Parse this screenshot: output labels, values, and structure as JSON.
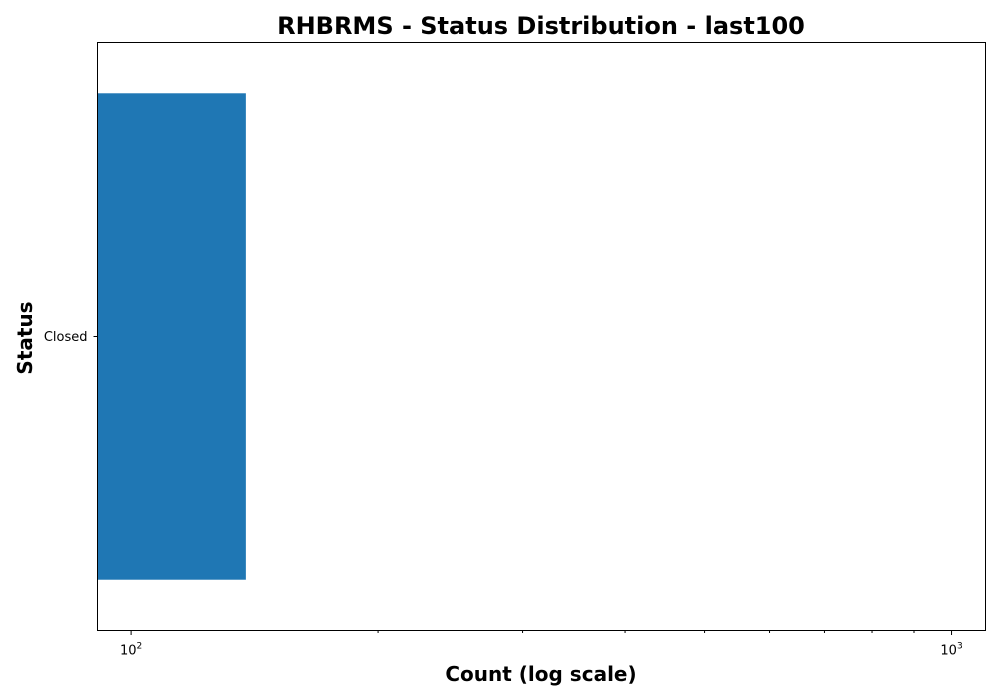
{
  "chart_data": {
    "type": "bar",
    "orientation": "horizontal",
    "title": "RHBRMS - Status Distribution - last100",
    "xlabel": "Count (log scale)",
    "ylabel": "Status",
    "xscale": "log",
    "xlim": [
      91,
      1100
    ],
    "categories": [
      "Closed"
    ],
    "values": [
      138
    ],
    "x_major_ticks": [
      {
        "value": 100,
        "base": "10",
        "exp": "2"
      },
      {
        "value": 1000,
        "base": "10",
        "exp": "3"
      }
    ],
    "x_minor_ticks": [
      200,
      300,
      400,
      500,
      600,
      700,
      800,
      900
    ],
    "bar_color": "#1f77b4",
    "grid": false,
    "legend": "none"
  }
}
